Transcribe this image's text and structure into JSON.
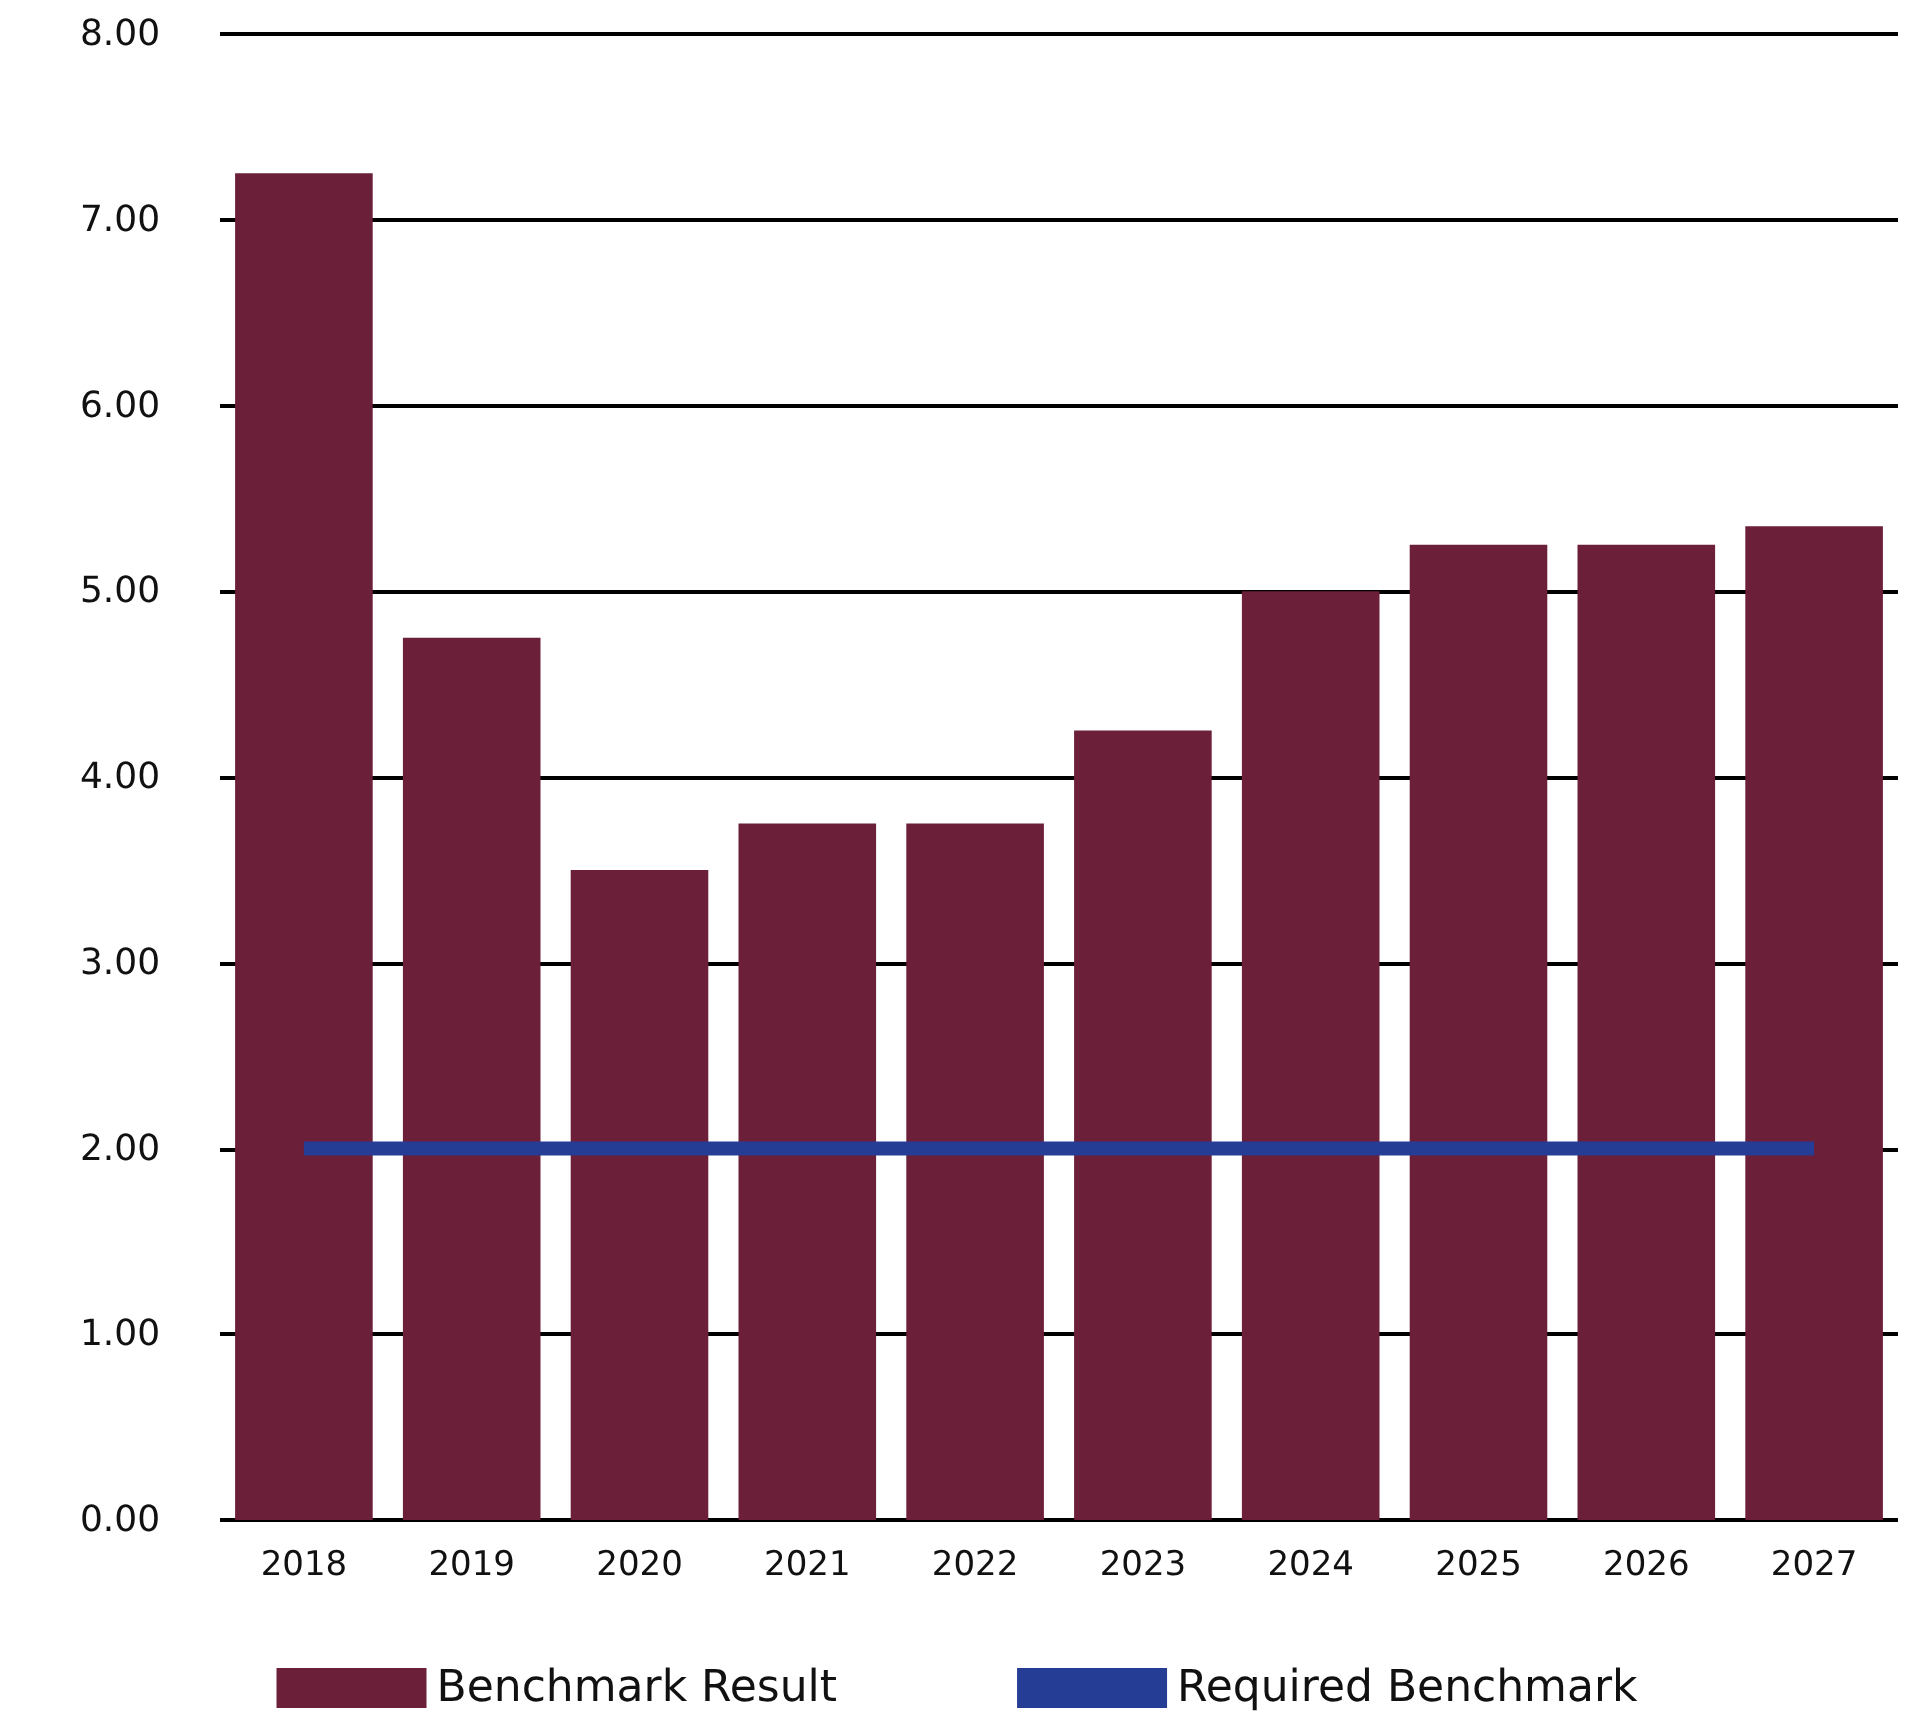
{
  "chart_data": {
    "type": "bar",
    "categories": [
      "2018",
      "2019",
      "2020",
      "2021",
      "2022",
      "2023",
      "2024",
      "2025",
      "2026",
      "2027"
    ],
    "series": [
      {
        "name": "Benchmark Result",
        "color": "#6b1f38",
        "values": [
          7.25,
          4.75,
          3.5,
          3.75,
          3.75,
          4.25,
          5.0,
          5.25,
          5.25,
          5.35
        ]
      },
      {
        "name": "Required Benchmark",
        "type": "line",
        "color": "#263d96",
        "values": [
          2,
          2,
          2,
          2,
          2,
          2,
          2,
          2,
          2,
          2
        ]
      }
    ],
    "ylim": [
      0,
      8
    ],
    "yticks": [
      {
        "value": 0,
        "label": "0.00"
      },
      {
        "value": 1,
        "label": "1.00"
      },
      {
        "value": 2,
        "label": "2.00"
      },
      {
        "value": 3,
        "label": "3.00"
      },
      {
        "value": 4,
        "label": "4.00"
      },
      {
        "value": 5,
        "label": "5.00"
      },
      {
        "value": 6,
        "label": "6.00"
      },
      {
        "value": 7,
        "label": "7.00"
      },
      {
        "value": 8,
        "label": "8.00"
      }
    ],
    "grid": "y",
    "legend": "bottom"
  }
}
